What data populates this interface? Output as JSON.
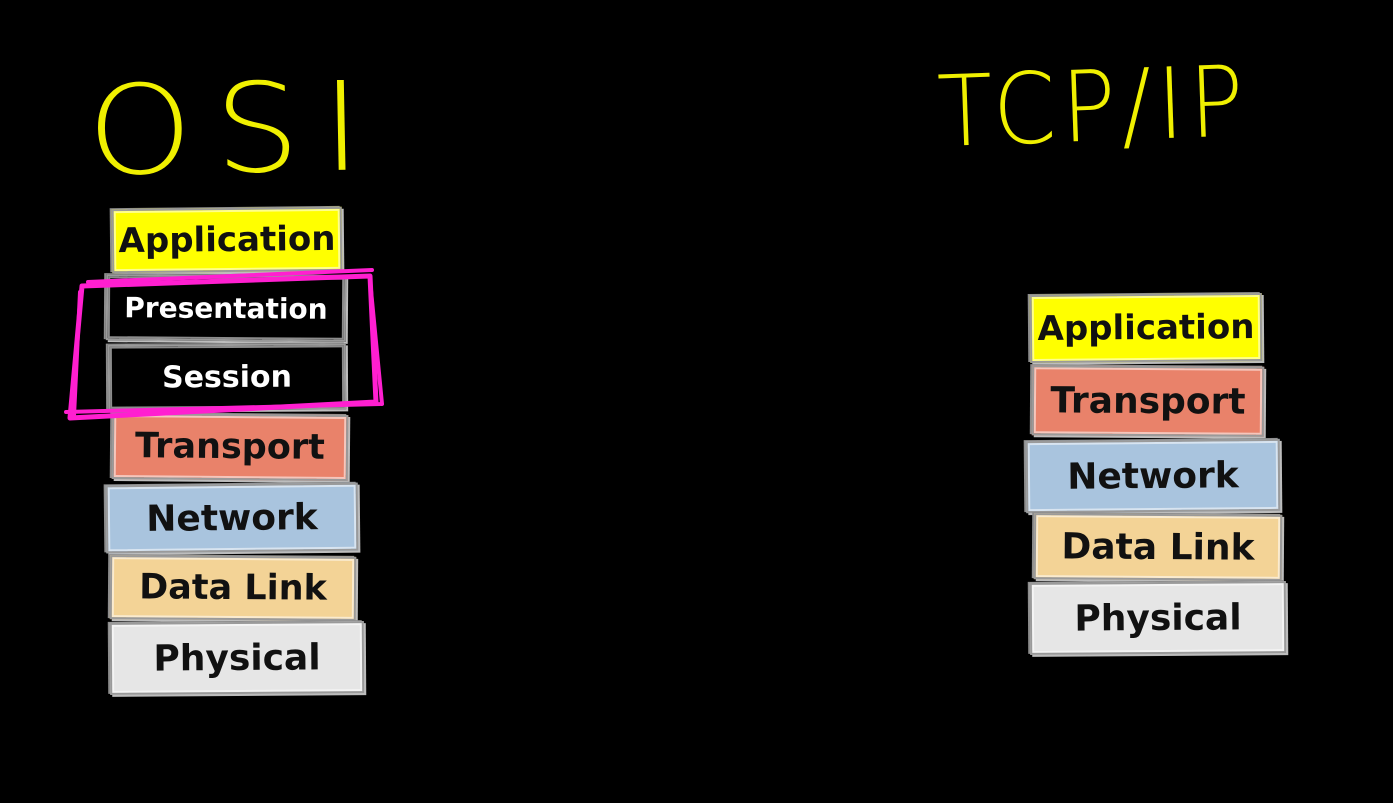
{
  "osi": {
    "title": "OSI",
    "layers": [
      {
        "label": "Application",
        "color": "#ffff00",
        "text_color": "#111111"
      },
      {
        "label": "Presentation",
        "color": "#000000",
        "text_color": "#ffffff"
      },
      {
        "label": "Session",
        "color": "#000000",
        "text_color": "#ffffff"
      },
      {
        "label": "Transport",
        "color": "#e9826a",
        "text_color": "#111111"
      },
      {
        "label": "Network",
        "color": "#a9c4de",
        "text_color": "#111111"
      },
      {
        "label": "Data Link",
        "color": "#f3d396",
        "text_color": "#111111"
      },
      {
        "label": "Physical",
        "color": "#e6e6e6",
        "text_color": "#111111"
      }
    ],
    "highlight_color": "#ff1fd0"
  },
  "tcpip": {
    "title": "TCP/IP",
    "layers": [
      {
        "label": "Application",
        "color": "#ffff00",
        "text_color": "#111111"
      },
      {
        "label": "Transport",
        "color": "#e9826a",
        "text_color": "#111111"
      },
      {
        "label": "Network",
        "color": "#a9c4de",
        "text_color": "#111111"
      },
      {
        "label": "Data Link",
        "color": "#f3d396",
        "text_color": "#111111"
      },
      {
        "label": "Physical",
        "color": "#e6e6e6",
        "text_color": "#111111"
      }
    ]
  },
  "title_color": "#f0f000",
  "background": "#000000"
}
